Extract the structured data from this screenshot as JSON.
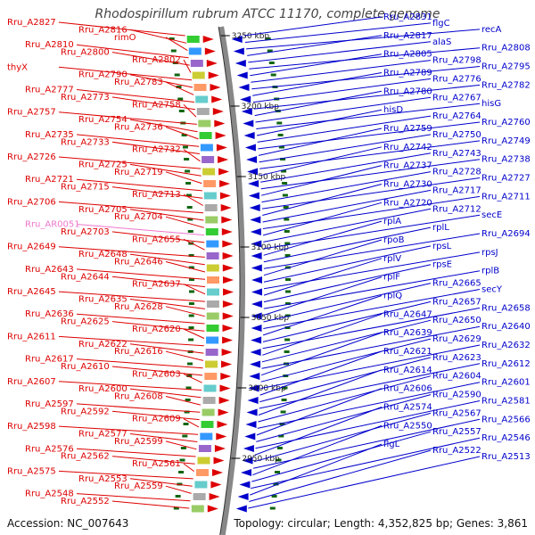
{
  "title": "Rhodospirillum rubrum ATCC 11170, complete genome",
  "footer": {
    "accession": "Accession: NC_007643",
    "topology": "Topology: circular; Length: 4,352,825 bp; Genes: 3,861"
  },
  "colors": {
    "forward": "#dd0000",
    "reverse": "#0000cc",
    "rna": "#ee77cc",
    "ring": "#888888",
    "ticks": "#116611"
  },
  "ticks": [
    "3250 kbp",
    "3200 kbp",
    "3150 kbp",
    "3100 kbp",
    "3050 kbp",
    "3000 kbp",
    "2950 kbp"
  ],
  "left_labels": [
    "Rru_A2827",
    "Rru_A2816",
    "rimO",
    "Rru_A2810",
    "Rru_A2800",
    "Rru_A2802",
    "thyX",
    "Rru_A2790",
    "Rru_A2783",
    "Rru_A2777",
    "Rru_A2773",
    "Rru_A2758",
    "Rru_A2757",
    "Rru_A2754",
    "Rru_A2736",
    "Rru_A2735",
    "Rru_A2733",
    "Rru_A2732",
    "Rru_A2726",
    "Rru_A2725",
    "Rru_A2719",
    "Rru_A2721",
    "Rru_A2715",
    "Rru_A2713",
    "Rru_A2706",
    "Rru_A2705",
    "Rru_A2704",
    "Rru_AR0051",
    "Rru_A2703",
    "Rru_A2655",
    "Rru_A2649",
    "Rru_A2648",
    "Rru_A2646",
    "Rru_A2643",
    "Rru_A2644",
    "Rru_A2637",
    "Rru_A2645",
    "Rru_A2635",
    "Rru_A2628",
    "Rru_A2636",
    "Rru_A2625",
    "Rru_A2620",
    "Rru_A2611",
    "Rru_A2622",
    "Rru_A2616",
    "Rru_A2617",
    "Rru_A2610",
    "Rru_A2603",
    "Rru_A2607",
    "Rru_A2600",
    "Rru_A2608",
    "Rru_A2597",
    "Rru_A2592",
    "Rru_A2609",
    "Rru_A2598",
    "Rru_A2577",
    "Rru_A2599",
    "Rru_A2576",
    "Rru_A2562",
    "Rru_A2561",
    "Rru_A2575",
    "Rru_A2553",
    "Rru_A2559",
    "Rru_A2548",
    "Rru_A2552"
  ],
  "right_labels": [
    "Rru_A2831",
    "flgC",
    "recA",
    "Rru_A2817",
    "alaS",
    "Rru_A2808",
    "Rru_A2805",
    "Rru_A2798",
    "Rru_A2795",
    "Rru_A2789",
    "Rru_A2776",
    "Rru_A2782",
    "Rru_A2780",
    "Rru_A2767",
    "hisG",
    "hisD",
    "Rru_A2764",
    "Rru_A2760",
    "Rru_A2759",
    "Rru_A2750",
    "Rru_A2749",
    "Rru_A2742",
    "Rru_A2743",
    "Rru_A2738",
    "Rru_A2737",
    "Rru_A2728",
    "Rru_A2727",
    "Rru_A2730",
    "Rru_A2717",
    "Rru_A2711",
    "Rru_A2720",
    "Rru_A2712",
    "secE",
    "rplA",
    "rplL",
    "Rru_A2694",
    "rpoB",
    "rpsL",
    "rpsJ",
    "rplV",
    "rpsE",
    "rplB",
    "rplF",
    "Rru_A2665",
    "secY",
    "rplQ",
    "Rru_A2657",
    "Rru_A2658",
    "Rru_A2647",
    "Rru_A2650",
    "Rru_A2640",
    "Rru_A2639",
    "Rru_A2629",
    "Rru_A2632",
    "Rru_A2621",
    "Rru_A2623",
    "Rru_A2612",
    "Rru_A2614",
    "Rru_A2604",
    "Rru_A2601",
    "Rru_A2606",
    "Rru_A2590",
    "Rru_A2581",
    "Rru_A2574",
    "Rru_A2567",
    "Rru_A2566",
    "Rru_A2550",
    "Rru_A2557",
    "Rru_A2546",
    "flgL",
    "Rru_A2522",
    "Rru_A2513"
  ]
}
